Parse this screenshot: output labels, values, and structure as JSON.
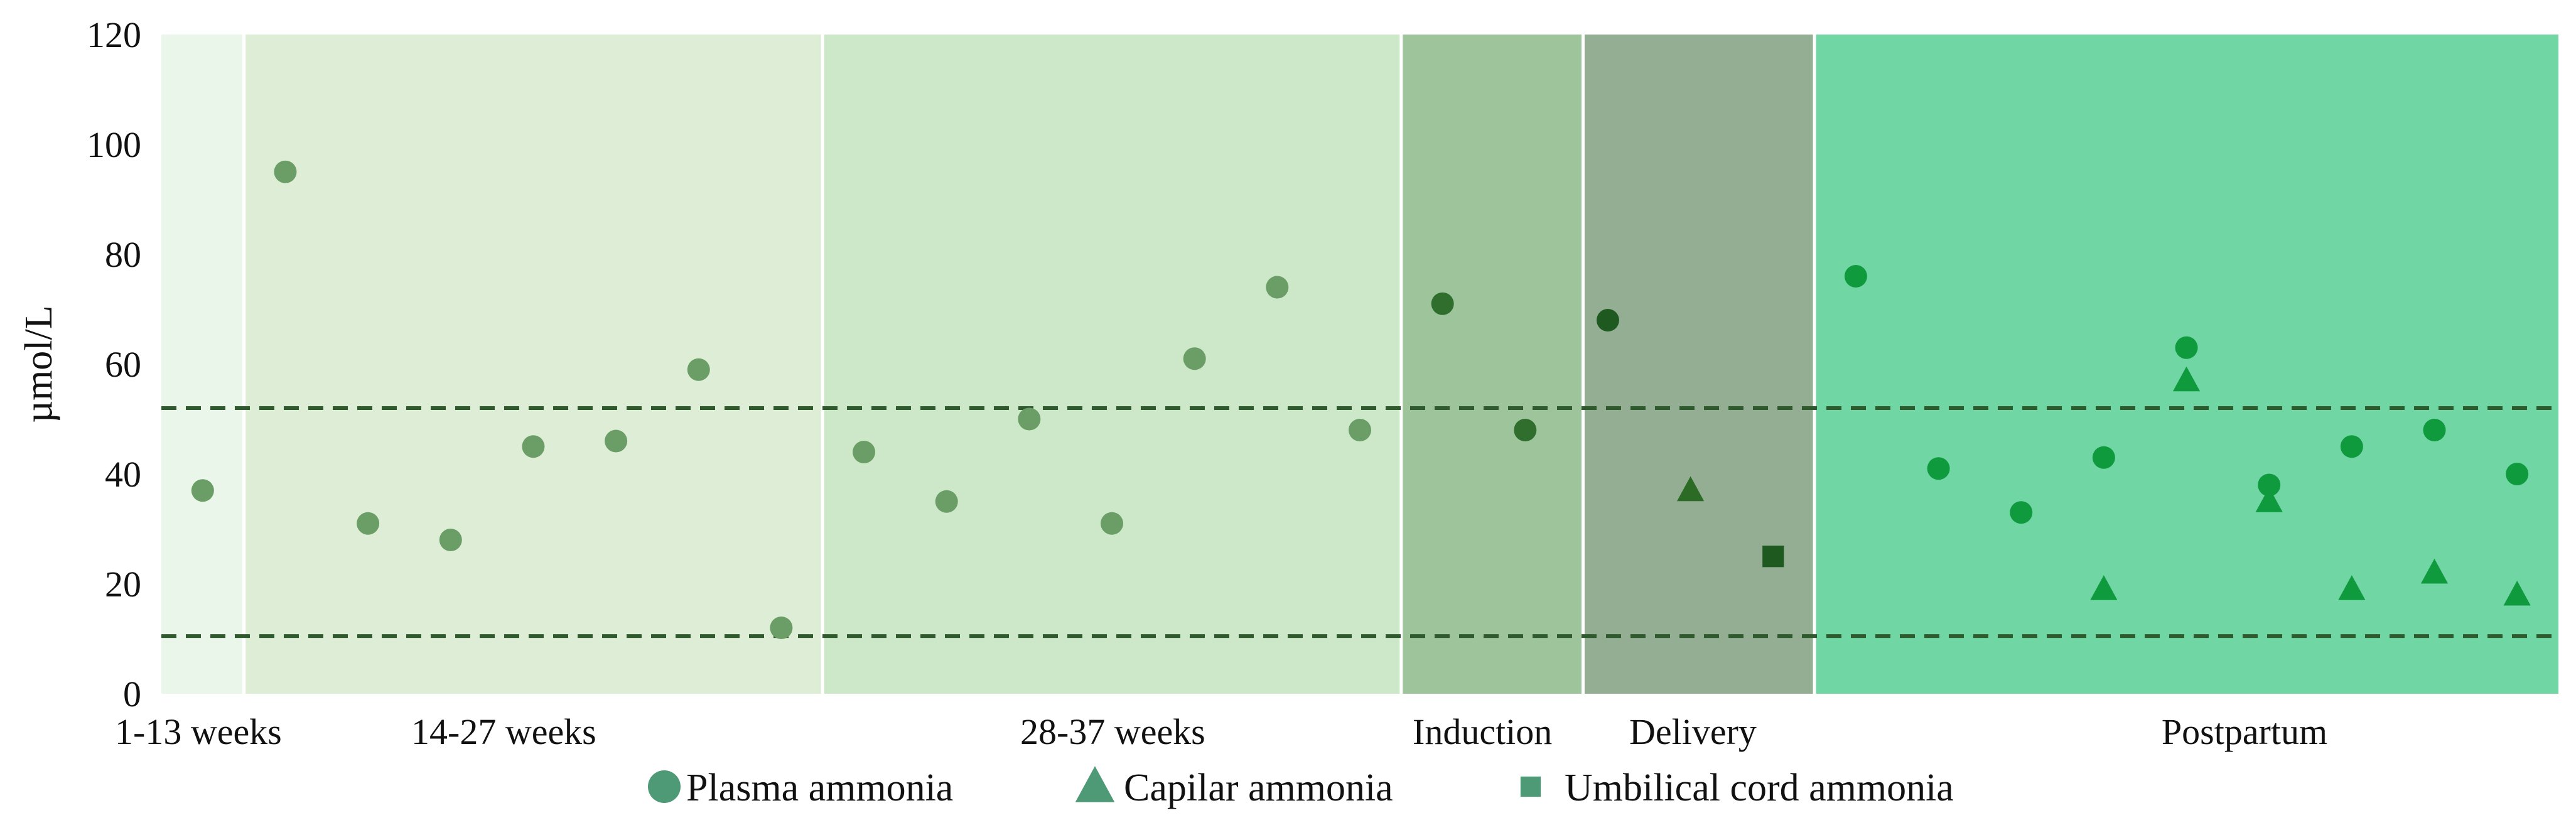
{
  "chart_data": {
    "type": "scatter",
    "title": "",
    "xlabel": "",
    "ylabel": "µmol/L",
    "ylim": [
      0,
      120
    ],
    "yticks": [
      "0",
      "20",
      "40",
      "60",
      "80",
      "100",
      "120"
    ],
    "grid": false,
    "legend_placement": "bottom-center",
    "reference_lines": [
      52,
      10.5
    ],
    "phases": [
      {
        "label": "1-13 weeks",
        "from": 0,
        "to": 1,
        "color": "#eaf6ea"
      },
      {
        "label": "14-27 weeks",
        "from": 1,
        "to": 8,
        "color": "#deeed6"
      },
      {
        "label": "28-37 weeks",
        "from": 8,
        "to": 15,
        "color": "#cde8c8"
      },
      {
        "label": "Induction",
        "from": 15,
        "to": 17.2,
        "color": "#9dc49a"
      },
      {
        "label": "Delivery",
        "from": 17.2,
        "to": 20,
        "color": "#94ae93"
      },
      {
        "label": "Postpartum",
        "from": 20,
        "to": 29,
        "color": "#6fd6a4"
      }
    ],
    "series": [
      {
        "name": "Plasma ammonia",
        "marker": "circle",
        "points": [
          {
            "x": 0.5,
            "y": 37,
            "color": "#6a9e66"
          },
          {
            "x": 1.5,
            "y": 95,
            "color": "#6a9e66"
          },
          {
            "x": 2.5,
            "y": 31,
            "color": "#6a9e66"
          },
          {
            "x": 3.5,
            "y": 28,
            "color": "#6a9e66"
          },
          {
            "x": 4.5,
            "y": 45,
            "color": "#6a9e66"
          },
          {
            "x": 5.5,
            "y": 46,
            "color": "#6a9e66"
          },
          {
            "x": 6.5,
            "y": 59,
            "color": "#6a9e66"
          },
          {
            "x": 7.5,
            "y": 12,
            "color": "#6a9e66"
          },
          {
            "x": 8.5,
            "y": 44,
            "color": "#6a9e66"
          },
          {
            "x": 9.5,
            "y": 35,
            "color": "#6a9e66"
          },
          {
            "x": 10.5,
            "y": 50,
            "color": "#6a9e66"
          },
          {
            "x": 11.5,
            "y": 31,
            "color": "#6a9e66"
          },
          {
            "x": 12.5,
            "y": 61,
            "color": "#6a9e66"
          },
          {
            "x": 13.5,
            "y": 74,
            "color": "#6a9e66"
          },
          {
            "x": 14.5,
            "y": 48,
            "color": "#6a9e66"
          },
          {
            "x": 15.5,
            "y": 71,
            "color": "#2f6e2c"
          },
          {
            "x": 16.5,
            "y": 48,
            "color": "#2f6e2c"
          },
          {
            "x": 17.5,
            "y": 68,
            "color": "#1e5a1f"
          },
          {
            "x": 20.5,
            "y": 76,
            "color": "#0f9a3e"
          },
          {
            "x": 21.5,
            "y": 41,
            "color": "#0f9a3e"
          },
          {
            "x": 22.5,
            "y": 33,
            "color": "#0f9a3e"
          },
          {
            "x": 23.5,
            "y": 43,
            "color": "#0f9a3e"
          },
          {
            "x": 24.5,
            "y": 63,
            "color": "#0f9a3e"
          },
          {
            "x": 25.5,
            "y": 38,
            "color": "#0f9a3e"
          },
          {
            "x": 26.5,
            "y": 45,
            "color": "#0f9a3e"
          },
          {
            "x": 27.5,
            "y": 48,
            "color": "#0f9a3e"
          },
          {
            "x": 28.5,
            "y": 40,
            "color": "#0f9a3e"
          }
        ]
      },
      {
        "name": "Capilar ammonia",
        "marker": "triangle",
        "points": [
          {
            "x": 18.5,
            "y": 37,
            "color": "#2b6b26"
          },
          {
            "x": 23.5,
            "y": 19,
            "color": "#0f9a3e"
          },
          {
            "x": 24.5,
            "y": 57,
            "color": "#0f9a3e"
          },
          {
            "x": 25.5,
            "y": 35,
            "color": "#0f9a3e"
          },
          {
            "x": 26.5,
            "y": 19,
            "color": "#0f9a3e"
          },
          {
            "x": 27.5,
            "y": 22,
            "color": "#0f9a3e"
          },
          {
            "x": 28.5,
            "y": 18,
            "color": "#0f9a3e"
          }
        ]
      },
      {
        "name": "Umbilical cord ammonia",
        "marker": "square",
        "points": [
          {
            "x": 19.5,
            "y": 25,
            "color": "#1e5a1f"
          }
        ]
      }
    ],
    "legend_colors": {
      "Plasma ammonia": "#4e9a77",
      "Capilar ammonia": "#4e9a77",
      "Umbilical cord ammonia": "#4e9a77"
    }
  }
}
